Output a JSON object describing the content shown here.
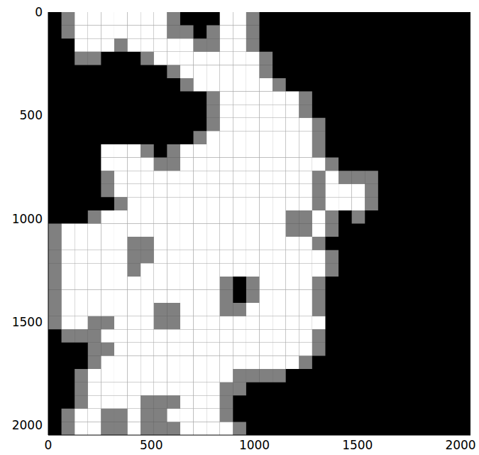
{
  "chart_data": {
    "type": "heatmap",
    "xlim": [
      0,
      2048
    ],
    "ylim": [
      2048,
      0
    ],
    "xticks": [
      0,
      500,
      1000,
      1500,
      2000
    ],
    "yticks": [
      0,
      500,
      1000,
      1500,
      2000
    ],
    "grid": false,
    "color": "#ffffff",
    "cells": [
      [
        0,
        0.5,
        1,
        1,
        1,
        1,
        1,
        1,
        1,
        0.5,
        0,
        0,
        0,
        1,
        1,
        0.5,
        0,
        0,
        0,
        0,
        0,
        0,
        0,
        0,
        0,
        0,
        0,
        0,
        0,
        0,
        0,
        0
      ],
      [
        0,
        0.5,
        1,
        1,
        1,
        1,
        1,
        1,
        1,
        0.5,
        0.5,
        0,
        0.5,
        1,
        1,
        0.5,
        0,
        0,
        0,
        0,
        0,
        0,
        0,
        0,
        0,
        0,
        0,
        0,
        0,
        0,
        0,
        0
      ],
      [
        0,
        0,
        1,
        1,
        1,
        0.5,
        1,
        1,
        1,
        1,
        1,
        0.5,
        0.5,
        1,
        1,
        0.5,
        0,
        0,
        0,
        0,
        0,
        0,
        0,
        0,
        0,
        0,
        0,
        0,
        0,
        0,
        0,
        0
      ],
      [
        0,
        0,
        0.5,
        0.5,
        0,
        0,
        0,
        0.5,
        1,
        1,
        1,
        1,
        1,
        1,
        1,
        1,
        0.5,
        0,
        0,
        0,
        0,
        0,
        0,
        0,
        0,
        0,
        0,
        0,
        0,
        0,
        0,
        0
      ],
      [
        0,
        0,
        0,
        0,
        0,
        0,
        0,
        0,
        0,
        0.5,
        1,
        1,
        1,
        1,
        1,
        1,
        0.5,
        0,
        0,
        0,
        0,
        0,
        0,
        0,
        0,
        0,
        0,
        0,
        0,
        0,
        0,
        0
      ],
      [
        0,
        0,
        0,
        0,
        0,
        0,
        0,
        0,
        0,
        0,
        0.5,
        1,
        1,
        1,
        1,
        1,
        1,
        0.5,
        0,
        0,
        0,
        0,
        0,
        0,
        0,
        0,
        0,
        0,
        0,
        0,
        0,
        0
      ],
      [
        0,
        0,
        0,
        0,
        0,
        0,
        0,
        0,
        0,
        0,
        0,
        0,
        0.5,
        1,
        1,
        1,
        1,
        1,
        1,
        0.5,
        0,
        0,
        0,
        0,
        0,
        0,
        0,
        0,
        0,
        0,
        0,
        0
      ],
      [
        0,
        0,
        0,
        0,
        0,
        0,
        0,
        0,
        0,
        0,
        0,
        0,
        0.5,
        1,
        1,
        1,
        1,
        1,
        1,
        0.5,
        0,
        0,
        0,
        0,
        0,
        0,
        0,
        0,
        0,
        0,
        0,
        0
      ],
      [
        0,
        0,
        0,
        0,
        0,
        0,
        0,
        0,
        0,
        0,
        0,
        0,
        0.5,
        1,
        1,
        1,
        1,
        1,
        1,
        1,
        0.5,
        0,
        0,
        0,
        0,
        0,
        0,
        0,
        0,
        0,
        0,
        0
      ],
      [
        0,
        0,
        0,
        0,
        0,
        0,
        0,
        0,
        0,
        0,
        0,
        0.5,
        1,
        1,
        1,
        1,
        1,
        1,
        1,
        1,
        0.5,
        0,
        0,
        0,
        0,
        0,
        0,
        0,
        0,
        0,
        0,
        0
      ],
      [
        0,
        0,
        0,
        0,
        1,
        1,
        1,
        0.5,
        0,
        0.5,
        1,
        1,
        1,
        1,
        1,
        1,
        1,
        1,
        1,
        1,
        0.5,
        0,
        0,
        0,
        0,
        0,
        0,
        0,
        0,
        0,
        0,
        0
      ],
      [
        0,
        0,
        0,
        0,
        1,
        1,
        1,
        1,
        0.5,
        0.5,
        1,
        1,
        1,
        1,
        1,
        1,
        1,
        1,
        1,
        1,
        1,
        0.5,
        0,
        0,
        0,
        0,
        0,
        0,
        0,
        0,
        0,
        0
      ],
      [
        0,
        0,
        0,
        0,
        0.5,
        1,
        1,
        1,
        1,
        1,
        1,
        1,
        1,
        1,
        1,
        1,
        1,
        1,
        1,
        1,
        0.5,
        1,
        0.5,
        0.5,
        0.5,
        0,
        0,
        0,
        0,
        0,
        0,
        0
      ],
      [
        0,
        0,
        0,
        0,
        0.5,
        1,
        1,
        1,
        1,
        1,
        1,
        1,
        1,
        1,
        1,
        1,
        1,
        1,
        1,
        1,
        0.5,
        1,
        1,
        1,
        0.5,
        0,
        0,
        0,
        0,
        0,
        0,
        0
      ],
      [
        0,
        0,
        0,
        0,
        0,
        0.5,
        1,
        1,
        1,
        1,
        1,
        1,
        1,
        1,
        1,
        1,
        1,
        1,
        1,
        1,
        0.5,
        1,
        1,
        1,
        0.5,
        0,
        0,
        0,
        0,
        0,
        0,
        0
      ],
      [
        0,
        0,
        0,
        0.5,
        1,
        1,
        1,
        1,
        1,
        1,
        1,
        1,
        1,
        1,
        1,
        1,
        1,
        1,
        0.5,
        0.5,
        1,
        0.5,
        0,
        0.5,
        0,
        0,
        0,
        0,
        0,
        0,
        0,
        0
      ],
      [
        0.5,
        1,
        1,
        1,
        1,
        1,
        1,
        1,
        1,
        1,
        1,
        1,
        1,
        1,
        1,
        1,
        1,
        1,
        0.5,
        0.5,
        1,
        0.5,
        0,
        0,
        0,
        0,
        0,
        0,
        0,
        0,
        0,
        0
      ],
      [
        0.5,
        1,
        1,
        1,
        1,
        1,
        0.5,
        0.5,
        1,
        1,
        1,
        1,
        1,
        1,
        1,
        1,
        1,
        1,
        1,
        1,
        0.5,
        0,
        0,
        0,
        0,
        0,
        0,
        0,
        0,
        0,
        0,
        0
      ],
      [
        0.5,
        1,
        1,
        1,
        1,
        1,
        0.5,
        0.5,
        1,
        1,
        1,
        1,
        1,
        1,
        1,
        1,
        1,
        1,
        1,
        1,
        1,
        0.5,
        0,
        0,
        0,
        0,
        0,
        0,
        0,
        0,
        0,
        0
      ],
      [
        0.5,
        1,
        1,
        1,
        1,
        1,
        0.5,
        1,
        1,
        1,
        1,
        1,
        1,
        1,
        1,
        1,
        1,
        1,
        1,
        1,
        1,
        0.5,
        0,
        0,
        0,
        0,
        0,
        0,
        0,
        0,
        0,
        0
      ],
      [
        0.5,
        1,
        1,
        1,
        1,
        1,
        1,
        1,
        1,
        1,
        1,
        1,
        1,
        0.5,
        0,
        0.5,
        1,
        1,
        1,
        1,
        0.5,
        0,
        0,
        0,
        0,
        0,
        0,
        0,
        0,
        0,
        0,
        0
      ],
      [
        0.5,
        1,
        1,
        1,
        1,
        1,
        1,
        1,
        1,
        1,
        1,
        1,
        1,
        0.5,
        0,
        0.5,
        1,
        1,
        1,
        1,
        0.5,
        0,
        0,
        0,
        0,
        0,
        0,
        0,
        0,
        0,
        0,
        0
      ],
      [
        0.5,
        1,
        1,
        1,
        1,
        1,
        1,
        1,
        0.5,
        0.5,
        1,
        1,
        1,
        0.5,
        0.5,
        1,
        1,
        1,
        1,
        1,
        0.5,
        0,
        0,
        0,
        0,
        0,
        0,
        0,
        0,
        0,
        0,
        0
      ],
      [
        0.5,
        1,
        1,
        0.5,
        0.5,
        1,
        1,
        1,
        0.5,
        0.5,
        1,
        1,
        1,
        1,
        1,
        1,
        1,
        1,
        1,
        1,
        1,
        0,
        0,
        0,
        0,
        0,
        0,
        0,
        0,
        0,
        0,
        0
      ],
      [
        0,
        0.5,
        0.5,
        0.5,
        1,
        1,
        1,
        1,
        1,
        1,
        1,
        1,
        1,
        1,
        1,
        1,
        1,
        1,
        1,
        1,
        0.5,
        0,
        0,
        0,
        0,
        0,
        0,
        0,
        0,
        0,
        0,
        0
      ],
      [
        0,
        0,
        0,
        0.5,
        0.5,
        1,
        1,
        1,
        1,
        1,
        1,
        1,
        1,
        1,
        1,
        1,
        1,
        1,
        1,
        1,
        0.5,
        0,
        0,
        0,
        0,
        0,
        0,
        0,
        0,
        0,
        0,
        0
      ],
      [
        0,
        0,
        0,
        0.5,
        1,
        1,
        1,
        1,
        1,
        1,
        1,
        1,
        1,
        1,
        1,
        1,
        1,
        1,
        1,
        0.5,
        0,
        0,
        0,
        0,
        0,
        0,
        0,
        0,
        0,
        0,
        0,
        0
      ],
      [
        0,
        0,
        0.5,
        1,
        1,
        1,
        1,
        1,
        1,
        1,
        1,
        1,
        1,
        1,
        0.5,
        0.5,
        0.5,
        0.5,
        0,
        0,
        0,
        0,
        0,
        0,
        0,
        0,
        0,
        0,
        0,
        0,
        0,
        0
      ],
      [
        0,
        0,
        0.5,
        1,
        1,
        1,
        1,
        1,
        1,
        1,
        1,
        1,
        1,
        0.5,
        0.5,
        0,
        0,
        0,
        0,
        0,
        0,
        0,
        0,
        0,
        0,
        0,
        0,
        0,
        0,
        0,
        0,
        0
      ],
      [
        0,
        0,
        0.5,
        1,
        1,
        1,
        1,
        0.5,
        0.5,
        0.5,
        1,
        1,
        1,
        0.5,
        0,
        0,
        0,
        0,
        0,
        0,
        0,
        0,
        0,
        0,
        0,
        0,
        0,
        0,
        0,
        0,
        0,
        0
      ],
      [
        0,
        0.5,
        1,
        1,
        0.5,
        0.5,
        1,
        0.5,
        0.5,
        1,
        1,
        1,
        1,
        0.5,
        0,
        0,
        0,
        0,
        0,
        0,
        0,
        0,
        0,
        0,
        0,
        0,
        0,
        0,
        0,
        0,
        0,
        0
      ],
      [
        0,
        0.5,
        1,
        1,
        0.5,
        0.5,
        1,
        0.5,
        0.5,
        0.5,
        1,
        1,
        1,
        1,
        0.5,
        0,
        0,
        0,
        0,
        0,
        0,
        0,
        0,
        0,
        0,
        0,
        0,
        0,
        0,
        0,
        0,
        0
      ]
    ]
  }
}
